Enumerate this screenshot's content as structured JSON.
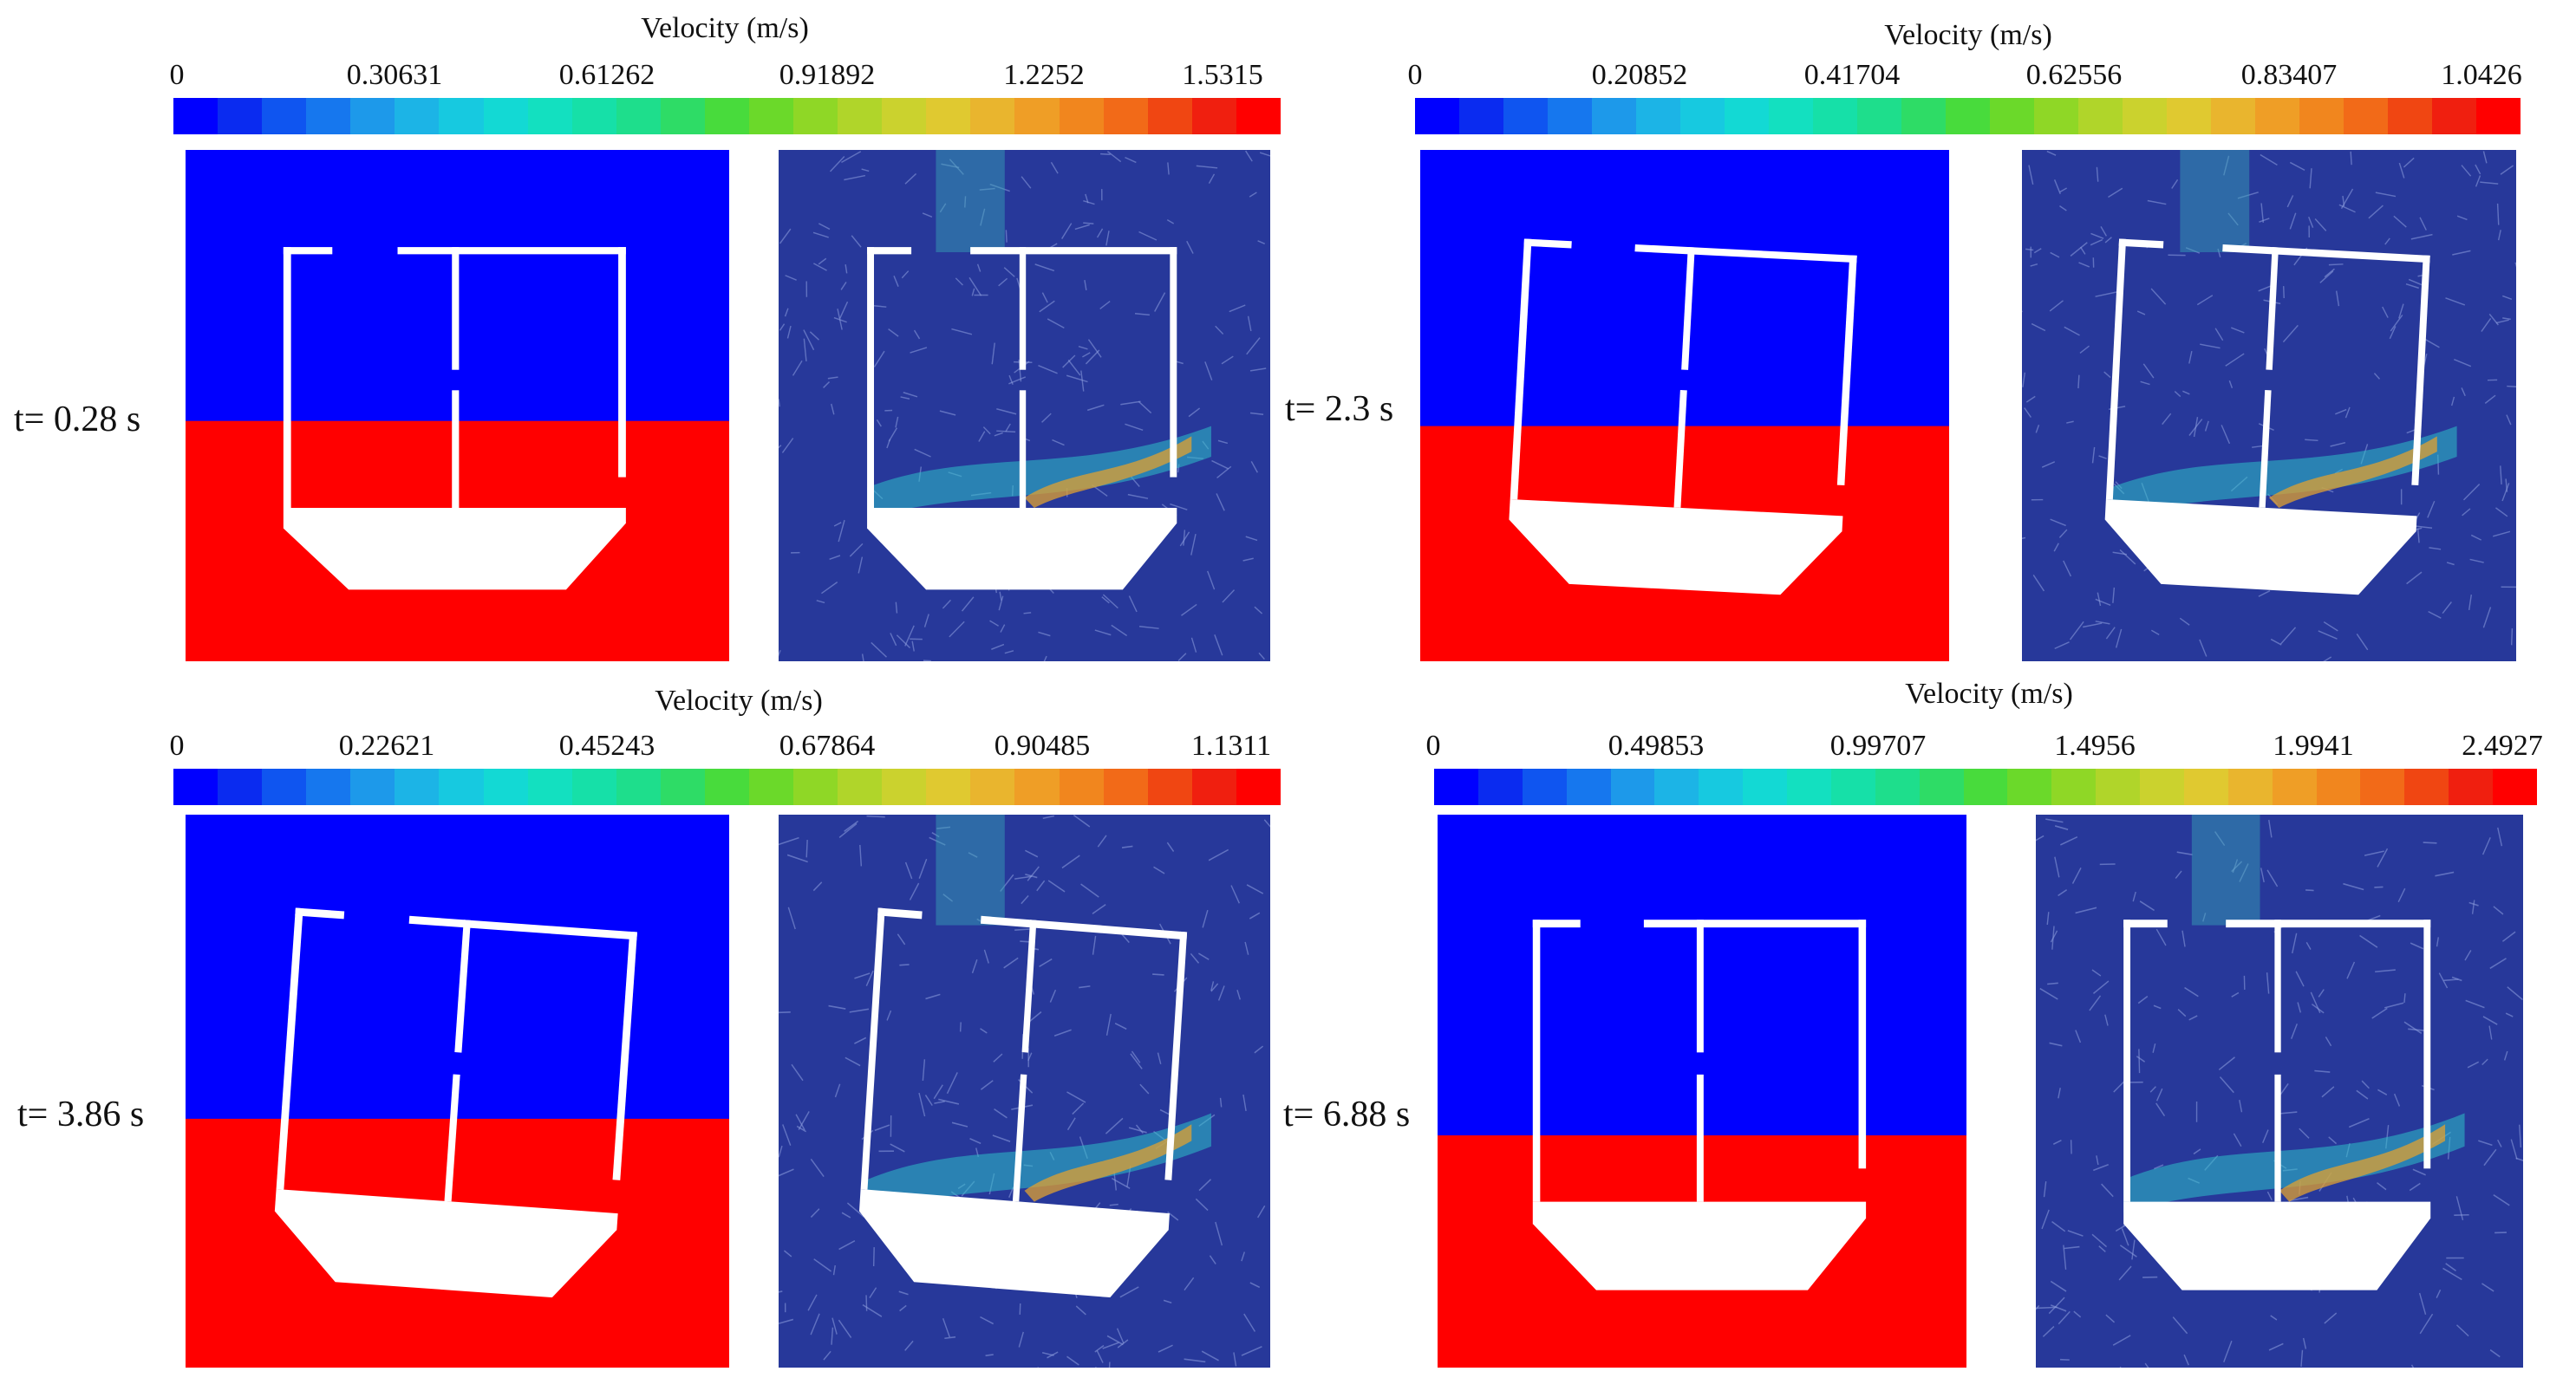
{
  "colorbar_title": "Velocity (m/s)",
  "colors": {
    "air_phase": "#0000ff",
    "water_phase": "#ff0000",
    "structure": "#ffffff",
    "flow_background": "#27389a",
    "colormap": [
      "#0000ff",
      "#0a2bf0",
      "#0f55f0",
      "#1677ee",
      "#1d99ea",
      "#1cb4e6",
      "#17c9e0",
      "#13d9d4",
      "#13e0c0",
      "#16e0a8",
      "#1ede8c",
      "#2edc66",
      "#48db3c",
      "#6bd92a",
      "#8fd726",
      "#b0d52a",
      "#cbd22e",
      "#e0c930",
      "#e9b52e",
      "#ef9e26",
      "#f1861e",
      "#f26a18",
      "#f04612",
      "#f01f0f",
      "#ff0000"
    ]
  },
  "panels": [
    {
      "time_label": "t= 0.28 s",
      "ticks": [
        "0",
        "0.30631",
        "0.61262",
        "0.91892",
        "1.2252",
        "1.5315"
      ]
    },
    {
      "time_label": "t= 2.3 s",
      "ticks": [
        "0",
        "0.20852",
        "0.41704",
        "0.62556",
        "0.83407",
        "1.0426"
      ]
    },
    {
      "time_label": "t= 3.86 s",
      "ticks": [
        "0",
        "0.22621",
        "0.45243",
        "0.67864",
        "0.90485",
        "1.1311"
      ]
    },
    {
      "time_label": "t= 6.88 s",
      "ticks": [
        "0",
        "0.49853",
        "0.99707",
        "1.4956",
        "1.9941",
        "2.4927"
      ]
    }
  ]
}
